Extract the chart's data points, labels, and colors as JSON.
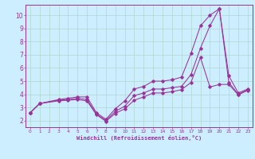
{
  "background_color": "#cceeff",
  "grid_color": "#b0d8cc",
  "line_color": "#993399",
  "xlabel": "Windchill (Refroidissement éolien,°C)",
  "xlim": [
    -0.5,
    23.5
  ],
  "ylim": [
    1.5,
    10.8
  ],
  "xticks": [
    0,
    1,
    2,
    3,
    4,
    5,
    6,
    7,
    8,
    9,
    10,
    11,
    12,
    13,
    14,
    15,
    16,
    17,
    18,
    19,
    20,
    21,
    22,
    23
  ],
  "yticks": [
    2,
    3,
    4,
    5,
    6,
    7,
    8,
    9,
    10
  ],
  "series": [
    {
      "x": [
        0,
        1,
        3,
        4,
        5,
        6,
        7,
        8,
        9,
        10,
        11,
        12,
        13,
        14,
        15,
        16,
        17,
        18,
        19,
        20,
        21,
        22,
        23
      ],
      "y": [
        2.6,
        3.3,
        3.6,
        3.7,
        3.8,
        3.8,
        2.6,
        2.1,
        2.9,
        3.5,
        4.4,
        4.6,
        5.0,
        5.0,
        5.1,
        5.3,
        7.1,
        9.2,
        10.0,
        10.5,
        5.4,
        4.1,
        4.4
      ]
    },
    {
      "x": [
        0,
        1,
        3,
        4,
        5,
        6,
        7,
        8,
        9,
        10,
        11,
        12,
        13,
        14,
        15,
        16,
        17,
        18,
        19,
        20,
        21,
        22,
        23
      ],
      "y": [
        2.6,
        3.3,
        3.55,
        3.6,
        3.7,
        3.6,
        2.5,
        2.0,
        2.7,
        3.1,
        3.9,
        4.1,
        4.4,
        4.4,
        4.5,
        4.6,
        5.5,
        7.5,
        9.2,
        10.5,
        4.9,
        4.0,
        4.35
      ]
    },
    {
      "x": [
        0,
        1,
        3,
        4,
        5,
        6,
        7,
        8,
        9,
        10,
        11,
        12,
        13,
        14,
        15,
        16,
        17,
        18,
        19,
        20,
        21,
        22,
        23
      ],
      "y": [
        2.6,
        3.3,
        3.5,
        3.55,
        3.6,
        3.5,
        2.45,
        1.95,
        2.55,
        2.9,
        3.55,
        3.8,
        4.1,
        4.1,
        4.2,
        4.35,
        4.9,
        6.8,
        4.55,
        4.75,
        4.75,
        3.95,
        4.3
      ]
    }
  ]
}
